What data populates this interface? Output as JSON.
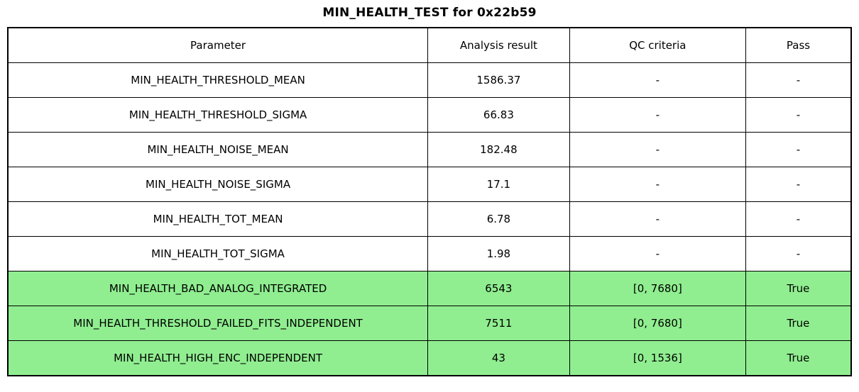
{
  "colors": {
    "pass_green": "#90EE90",
    "border": "#000000",
    "background": "#ffffff"
  },
  "chart_data": {
    "type": "table",
    "title": "MIN_HEALTH_TEST for 0x22b59",
    "columns": [
      "Parameter",
      "Analysis result",
      "QC criteria",
      "Pass"
    ],
    "rows": [
      {
        "parameter": "MIN_HEALTH_THRESHOLD_MEAN",
        "analysis_result": "1586.37",
        "qc_criteria": "-",
        "pass": "-",
        "highlight": false
      },
      {
        "parameter": "MIN_HEALTH_THRESHOLD_SIGMA",
        "analysis_result": "66.83",
        "qc_criteria": "-",
        "pass": "-",
        "highlight": false
      },
      {
        "parameter": "MIN_HEALTH_NOISE_MEAN",
        "analysis_result": "182.48",
        "qc_criteria": "-",
        "pass": "-",
        "highlight": false
      },
      {
        "parameter": "MIN_HEALTH_NOISE_SIGMA",
        "analysis_result": "17.1",
        "qc_criteria": "-",
        "pass": "-",
        "highlight": false
      },
      {
        "parameter": "MIN_HEALTH_TOT_MEAN",
        "analysis_result": "6.78",
        "qc_criteria": "-",
        "pass": "-",
        "highlight": false
      },
      {
        "parameter": "MIN_HEALTH_TOT_SIGMA",
        "analysis_result": "1.98",
        "qc_criteria": "-",
        "pass": "-",
        "highlight": false
      },
      {
        "parameter": "MIN_HEALTH_BAD_ANALOG_INTEGRATED",
        "analysis_result": "6543",
        "qc_criteria": "[0, 7680]",
        "pass": "True",
        "highlight": true
      },
      {
        "parameter": "MIN_HEALTH_THRESHOLD_FAILED_FITS_INDEPENDENT",
        "analysis_result": "7511",
        "qc_criteria": "[0, 7680]",
        "pass": "True",
        "highlight": true
      },
      {
        "parameter": "MIN_HEALTH_HIGH_ENC_INDEPENDENT",
        "analysis_result": "43",
        "qc_criteria": "[0, 1536]",
        "pass": "True",
        "highlight": true
      }
    ]
  }
}
